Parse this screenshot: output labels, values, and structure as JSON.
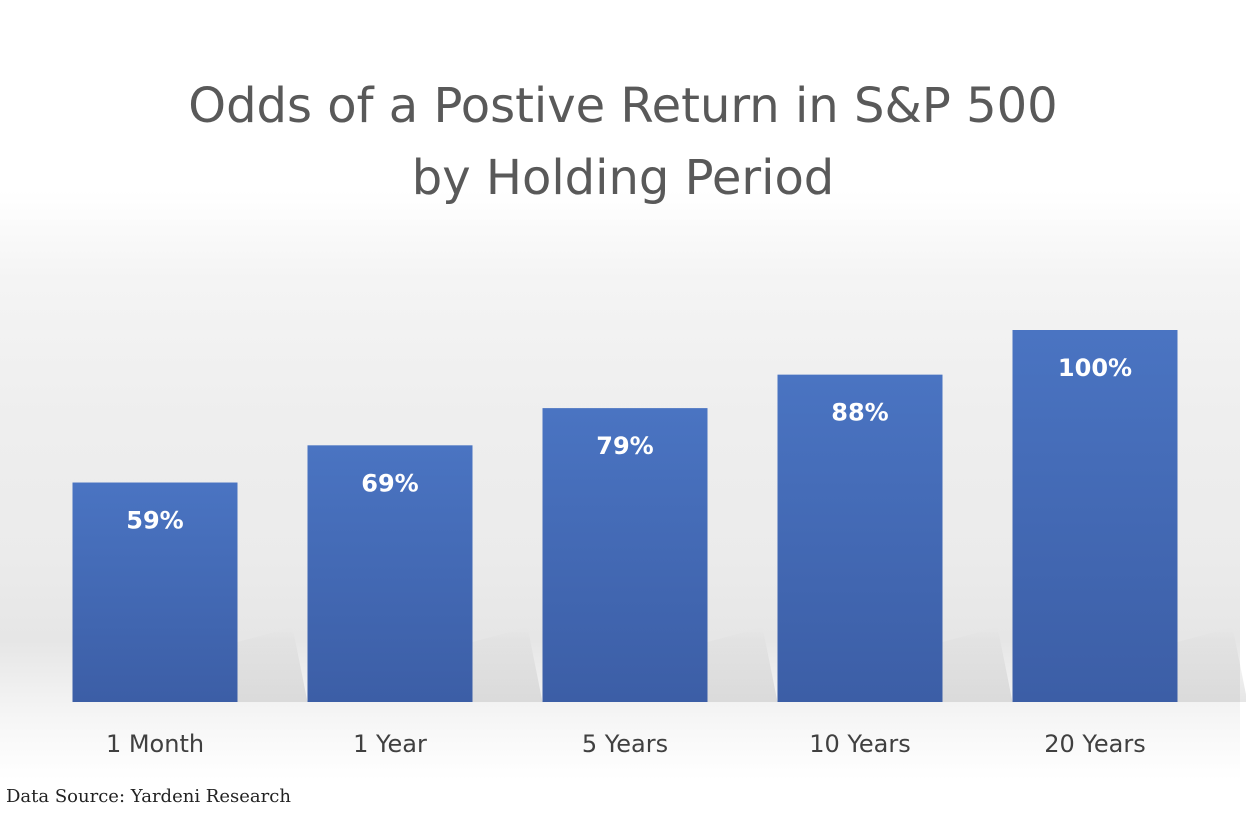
{
  "chart_data": {
    "type": "bar",
    "title": "Odds of a Postive Return in S&P 500",
    "subtitle": "by Holding Period",
    "categories": [
      "1 Month",
      "1 Year",
      "5 Years",
      "10 Years",
      "20 Years"
    ],
    "values": [
      59,
      69,
      79,
      88,
      100
    ],
    "data_labels": [
      "59%",
      "69%",
      "79%",
      "88%",
      "100%"
    ],
    "ylim": [
      0,
      100
    ],
    "grid": false,
    "legend": "none",
    "bar_color": "#4472c4"
  },
  "source": "Data Source: Yardeni Research"
}
